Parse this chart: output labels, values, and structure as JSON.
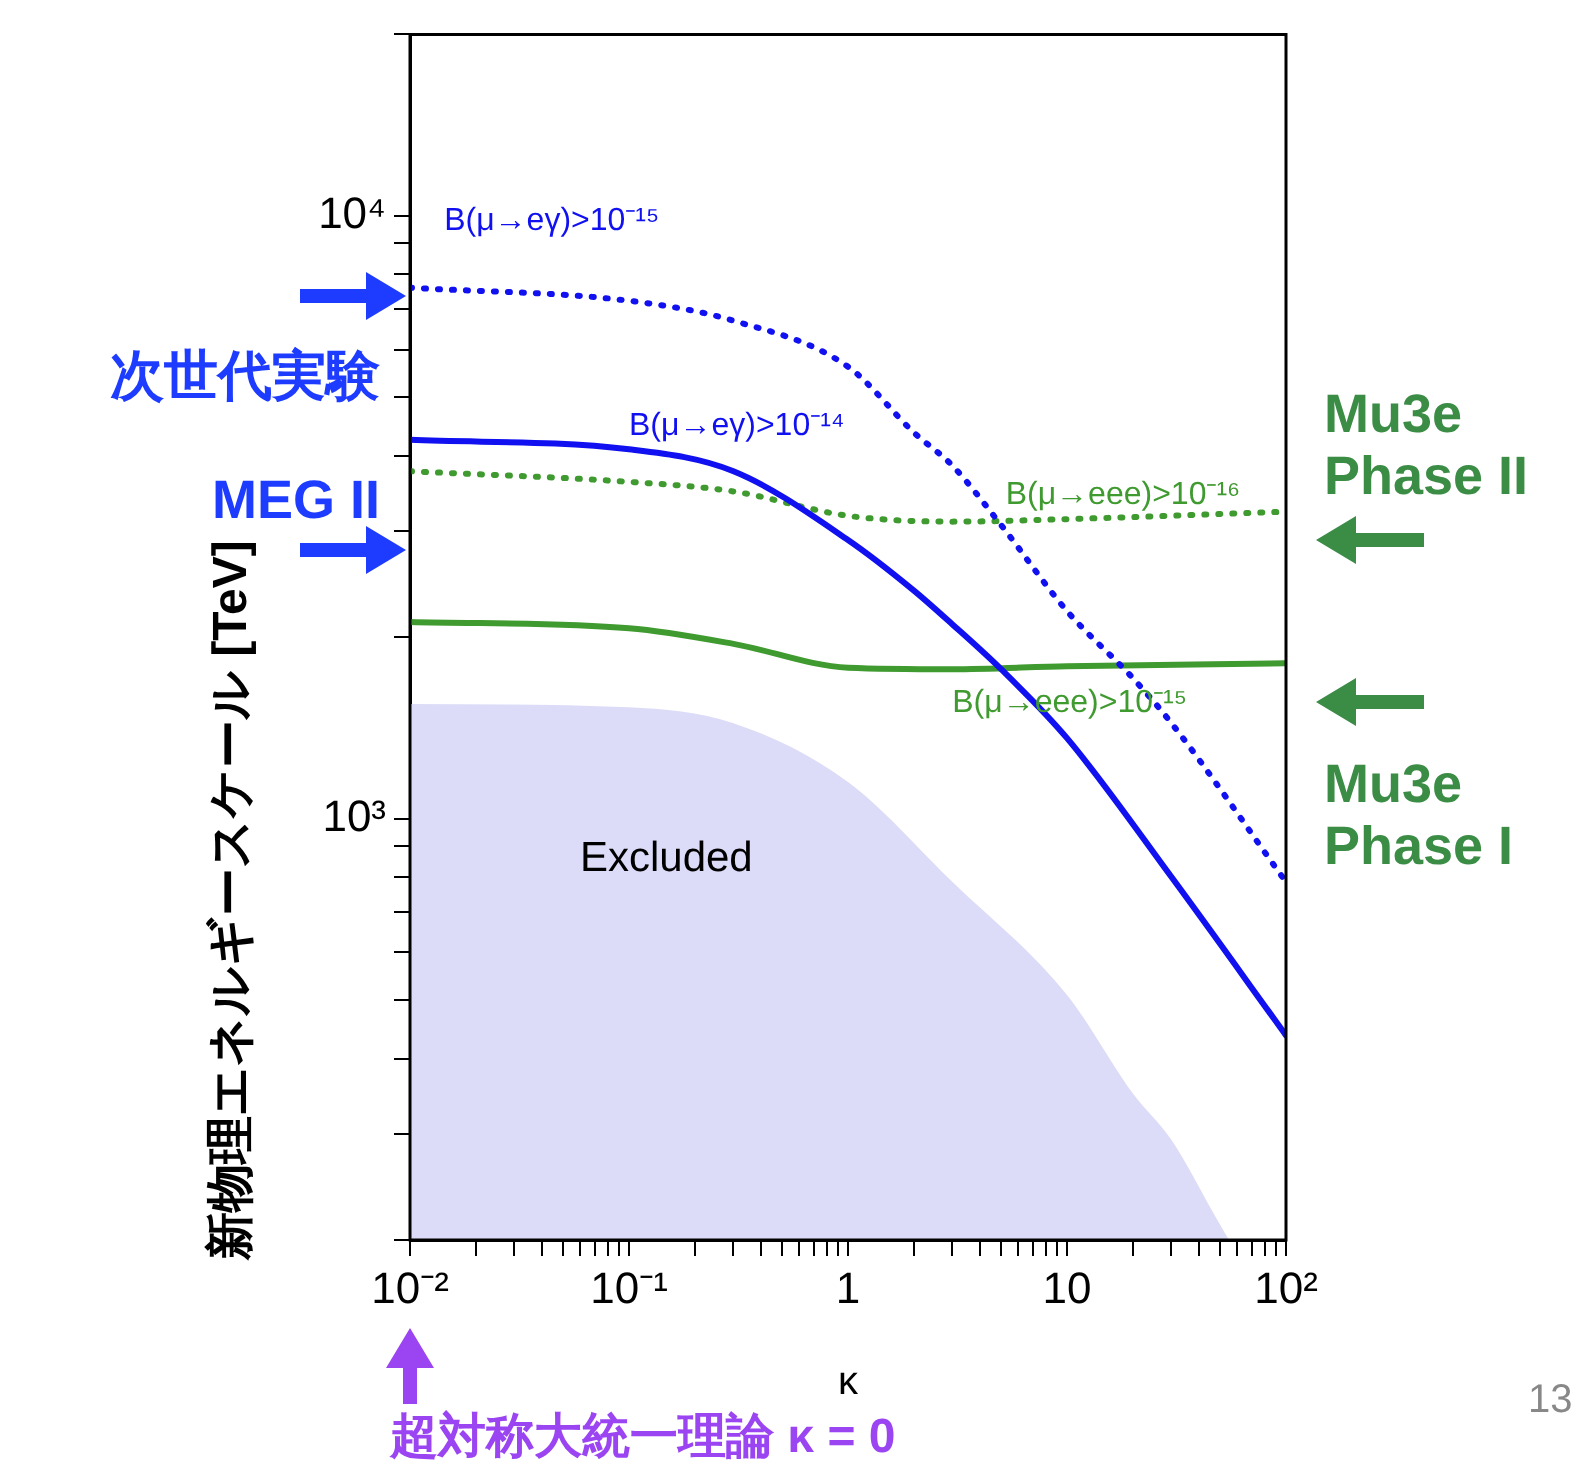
{
  "chart_data": {
    "type": "line",
    "xlabel": "κ",
    "ylabel": "新物理エネルギースケール [TeV]",
    "xlim": [
      0.01,
      100
    ],
    "ylim": [
      200,
      20000
    ],
    "xticks": [
      {
        "value": 0.01,
        "label": "10⁻²"
      },
      {
        "value": 0.02,
        "label": null
      },
      {
        "value": 0.03,
        "label": null
      },
      {
        "value": 0.04,
        "label": null
      },
      {
        "value": 0.05,
        "label": null
      },
      {
        "value": 0.06,
        "label": null
      },
      {
        "value": 0.07,
        "label": null
      },
      {
        "value": 0.08,
        "label": null
      },
      {
        "value": 0.09,
        "label": null
      },
      {
        "value": 0.1,
        "label": "10⁻¹"
      },
      {
        "value": 0.2,
        "label": null
      },
      {
        "value": 0.3,
        "label": null
      },
      {
        "value": 0.4,
        "label": null
      },
      {
        "value": 0.5,
        "label": null
      },
      {
        "value": 0.6,
        "label": null
      },
      {
        "value": 0.7,
        "label": null
      },
      {
        "value": 0.8,
        "label": null
      },
      {
        "value": 0.9,
        "label": null
      },
      1,
      {
        "value": 2,
        "label": null
      },
      {
        "value": 3,
        "label": null
      },
      {
        "value": 4,
        "label": null
      },
      {
        "value": 5,
        "label": null
      },
      {
        "value": 6,
        "label": null
      },
      {
        "value": 7,
        "label": null
      },
      {
        "value": 8,
        "label": null
      },
      {
        "value": 9,
        "label": null
      },
      10,
      {
        "value": 20,
        "label": null
      },
      {
        "value": 30,
        "label": null
      },
      {
        "value": 40,
        "label": null
      },
      {
        "value": 50,
        "label": null
      },
      {
        "value": 60,
        "label": null
      },
      {
        "value": 70,
        "label": null
      },
      {
        "value": 80,
        "label": null
      },
      {
        "value": 90,
        "label": null
      },
      {
        "value": 100,
        "label": "10²"
      }
    ],
    "yticks": [
      {
        "value": 200,
        "label": null
      },
      {
        "value": 300,
        "label": null
      },
      {
        "value": 400,
        "label": null
      },
      {
        "value": 500,
        "label": null
      },
      {
        "value": 600,
        "label": null
      },
      {
        "value": 700,
        "label": null
      },
      {
        "value": 800,
        "label": null
      },
      {
        "value": 900,
        "label": null
      },
      {
        "value": 1000,
        "label": "10³"
      },
      {
        "value": 2000,
        "label": null
      },
      {
        "value": 3000,
        "label": null
      },
      {
        "value": 4000,
        "label": null
      },
      {
        "value": 5000,
        "label": null
      },
      {
        "value": 6000,
        "label": null
      },
      {
        "value": 7000,
        "label": null
      },
      {
        "value": 8000,
        "label": null
      },
      {
        "value": 9000,
        "label": null
      },
      {
        "value": 10000,
        "label": "10⁴"
      },
      {
        "value": 20000,
        "label": null
      }
    ],
    "log": "xy",
    "legend": false,
    "marker": "none",
    "series": [
      {
        "name": "B(μ→eγ)>10⁻¹⁵",
        "color": "#1010f0",
        "line_style": "dotted",
        "x": [
          0.01,
          0.1,
          0.3,
          1,
          2,
          3,
          5,
          10,
          20,
          30,
          100
        ],
        "values": [
          7600,
          7230,
          6700,
          5620,
          4370,
          3850,
          3070,
          2210,
          1710,
          1440,
          785
        ]
      },
      {
        "name": "B(μ→eγ)>10⁻¹⁴",
        "color": "#1010f0",
        "line_style": "solid",
        "x": [
          0.01,
          0.1,
          0.3,
          1,
          2,
          3,
          5,
          10,
          30,
          100
        ],
        "values": [
          4250,
          4100,
          3770,
          2900,
          2390,
          2100,
          1770,
          1360,
          800,
          437
        ]
      },
      {
        "name": "B(μ→eee)>10⁻¹⁶",
        "color": "#3f9a2f",
        "line_style": "dotted",
        "x": [
          0.01,
          0.1,
          0.3,
          1,
          3,
          10,
          100
        ],
        "values": [
          3770,
          3620,
          3490,
          3180,
          3110,
          3140,
          3230
        ]
      },
      {
        "name": "B(μ→eee)>10⁻¹⁵",
        "color": "#3f9a2f",
        "line_style": "solid",
        "x": [
          0.01,
          0.1,
          0.3,
          1,
          3,
          10,
          100
        ],
        "values": [
          2120,
          2070,
          1950,
          1780,
          1770,
          1790,
          1810
        ]
      },
      {
        "name": "Excluded",
        "type": "area",
        "color": "#dcdcf8",
        "x": [
          0.01,
          0.1,
          0.3,
          1,
          3,
          10,
          20,
          30,
          50,
          55
        ],
        "values": [
          1550,
          1530,
          1440,
          1150,
          785,
          510,
          350,
          293,
          212,
          200
        ]
      }
    ],
    "annotations": [
      "次世代実験",
      "MEG II",
      "Mu3e Phase II",
      "Mu3e Phase I",
      "超対称大統一理論 κ = 0",
      "13"
    ]
  }
}
